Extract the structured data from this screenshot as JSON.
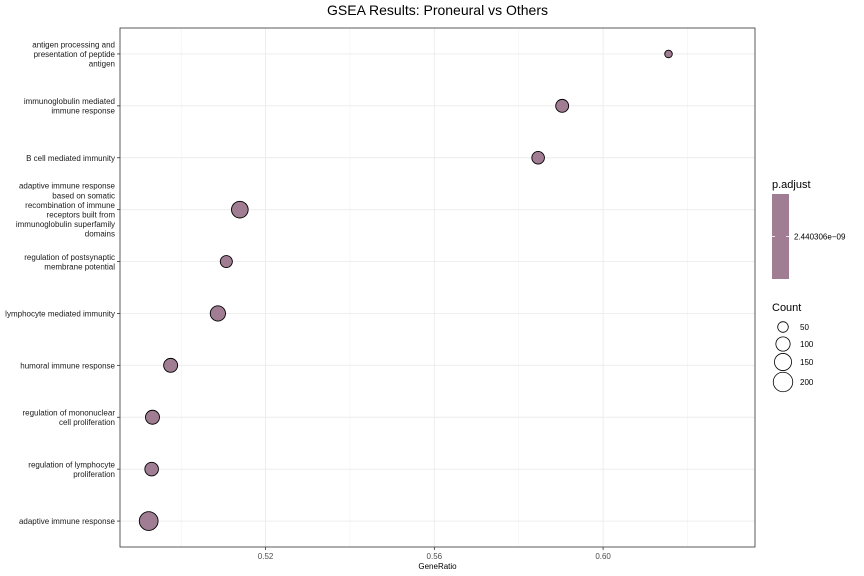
{
  "chart_data": {
    "type": "scatter",
    "title": "GSEA Results: Proneural vs Others",
    "xlabel": "GeneRatio",
    "ylabel": "",
    "xlim": [
      0.4855,
      0.636
    ],
    "x_ticks": [
      0.52,
      0.56,
      0.6
    ],
    "x_tick_labels": [
      "0.52",
      "0.56",
      "0.60"
    ],
    "grid": true,
    "categories": [
      [
        "antigen processing and",
        "presentation of peptide",
        "antigen"
      ],
      [
        "immunoglobulin mediated",
        "immune response"
      ],
      [
        "B cell mediated immunity"
      ],
      [
        "adaptive immune response",
        "based on somatic",
        "recombination of immune",
        "receptors built from",
        "immunoglobulin superfamily",
        "domains"
      ],
      [
        "regulation of postsynaptic",
        "membrane potential"
      ],
      [
        "lymphocyte mediated immunity"
      ],
      [
        "humoral immune response"
      ],
      [
        "regulation of mononuclear",
        "cell proliferation"
      ],
      [
        "regulation of lymphocyte",
        "proliferation"
      ],
      [
        "adaptive immune response"
      ]
    ],
    "series": [
      {
        "x": [
          0.6155,
          0.5903,
          0.5846,
          0.5139,
          0.5107,
          0.5087,
          0.4975,
          0.4932,
          0.493,
          0.4923
        ],
        "count": [
          22,
          80,
          75,
          142,
          68,
          116,
          95,
          96,
          90,
          185
        ],
        "p_adjust": [
          2.440306e-09,
          2.440306e-09,
          2.440306e-09,
          2.440306e-09,
          2.440306e-09,
          2.440306e-09,
          2.440306e-09,
          2.440306e-09,
          2.440306e-09,
          2.440306e-09
        ]
      }
    ],
    "point_color": "#a07d92",
    "legend_color": {
      "title": "p.adjust",
      "label": "2.440306e−09",
      "color": "#a07d92"
    },
    "legend_size": {
      "title": "Count",
      "values": [
        50,
        100,
        150,
        200
      ],
      "labels": [
        "50",
        "100",
        "150",
        "200"
      ]
    },
    "legend_position": "right"
  }
}
